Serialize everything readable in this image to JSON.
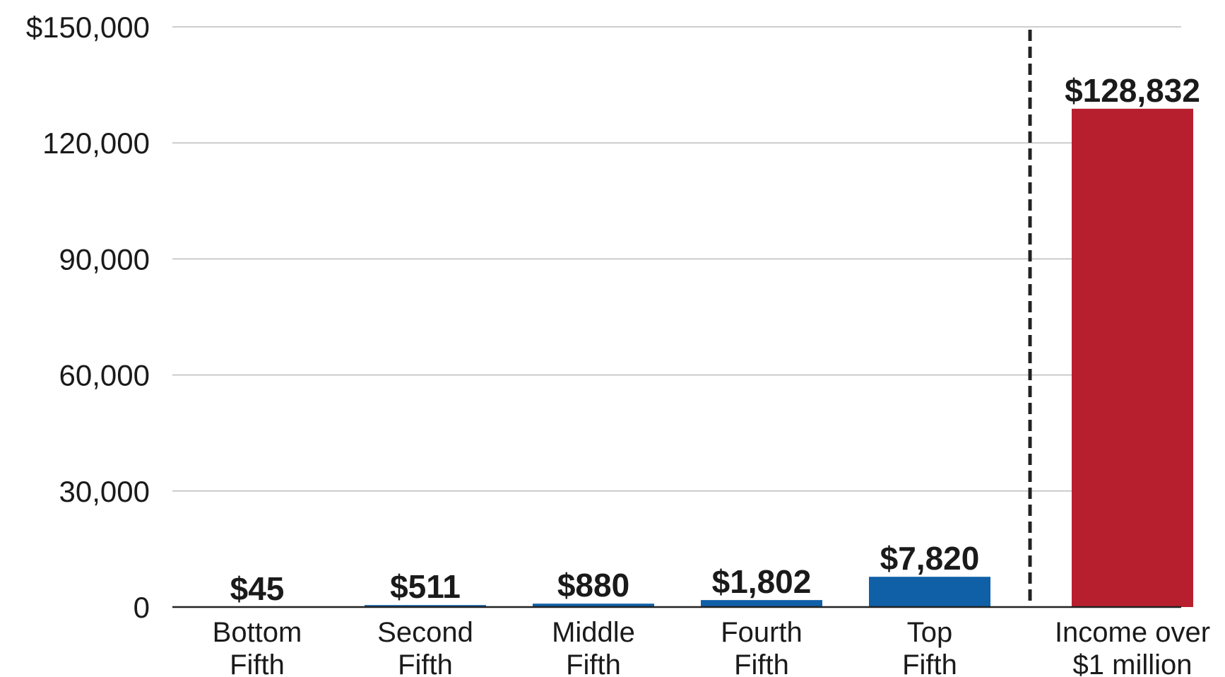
{
  "chart_data": {
    "type": "bar",
    "categories": [
      [
        "Bottom",
        "Fifth"
      ],
      [
        "Second",
        "Fifth"
      ],
      [
        "Middle",
        "Fifth"
      ],
      [
        "Fourth",
        "Fifth"
      ],
      [
        "Top",
        "Fifth"
      ],
      [
        "Income over",
        "$1 million"
      ]
    ],
    "values": [
      45,
      511,
      880,
      1802,
      7820,
      128832
    ],
    "value_labels": [
      "$45",
      "$511",
      "$880",
      "$1,802",
      "$7,820",
      "$128,832"
    ],
    "colors": [
      "#1060a8",
      "#1060a8",
      "#1060a8",
      "#1060a8",
      "#1060a8",
      "#b81f2e"
    ],
    "ylim": [
      0,
      150000
    ],
    "yticks": [
      0,
      {
        "value": 30000,
        "label": "30,000"
      },
      {
        "value": 60000,
        "label": "60,000"
      },
      {
        "value": 90000,
        "label": "90,000"
      },
      {
        "value": 120000,
        "label": "120,000"
      },
      {
        "value": 150000,
        "label": "$150,000"
      }
    ],
    "grid": true
  }
}
